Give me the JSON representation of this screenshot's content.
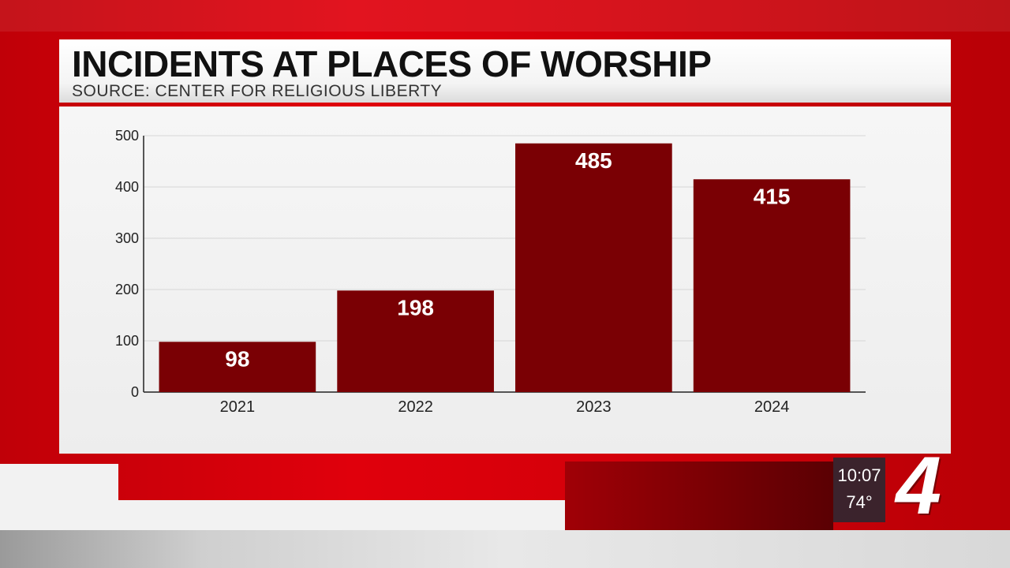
{
  "header": {
    "title": "INCIDENTS AT PLACES OF WORSHIP",
    "subtitle": "SOURCE: CENTER FOR RELIGIOUS LIBERTY"
  },
  "bug": {
    "time": "10:07",
    "temperature": "74°",
    "logo": "4"
  },
  "colors": {
    "bar": "#7a0004",
    "accent": "#d4000a"
  },
  "chart_data": {
    "type": "bar",
    "title": "INCIDENTS AT PLACES OF WORSHIP",
    "subtitle": "SOURCE: CENTER FOR RELIGIOUS LIBERTY",
    "categories": [
      "2021",
      "2022",
      "2023",
      "2024"
    ],
    "values": [
      98,
      198,
      485,
      415
    ],
    "data_labels": [
      "98",
      "198",
      "485",
      "415"
    ],
    "yticks": [
      0,
      100,
      200,
      300,
      400,
      500
    ],
    "ylim": [
      0,
      500
    ],
    "xlabel": "",
    "ylabel": "",
    "grid": true,
    "legend": "none"
  }
}
